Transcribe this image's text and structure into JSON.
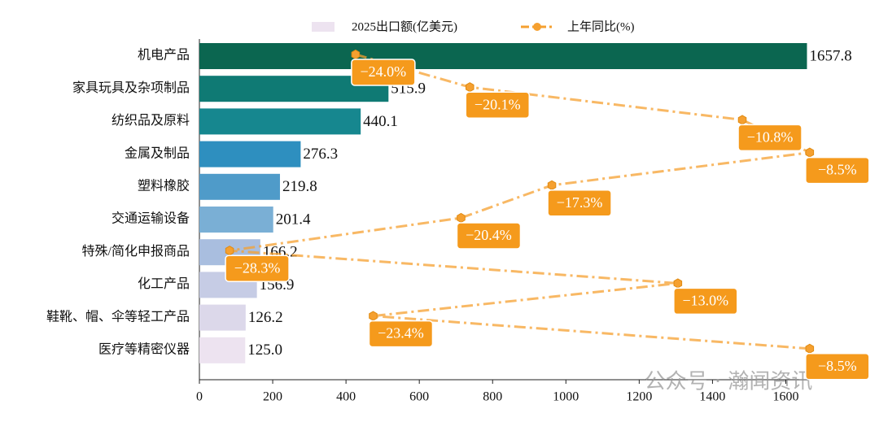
{
  "chart_data": {
    "type": "bar_line",
    "categories": [
      "机电产品",
      "家具玩具及杂项制品",
      "纺织品及原料",
      "金属及制品",
      "塑料橡胶",
      "交通运输设备",
      "特殊/简化申报商品",
      "化工产品",
      "鞋靴、帽、伞等轻工产品",
      "医疗等精密仪器"
    ],
    "series": [
      {
        "name": "2025出口额(亿美元)",
        "type": "bar",
        "values": [
          1657.8,
          515.9,
          440.1,
          276.3,
          219.8,
          201.4,
          166.2,
          156.9,
          126.2,
          125.0
        ],
        "value_labels": [
          "1657.8",
          "515.9",
          "440.1",
          "276.3",
          "219.8",
          "201.4",
          "166.2",
          "156.9",
          "126.2",
          "125.0"
        ],
        "colors": [
          "#0b6650",
          "#0f7a74",
          "#16878f",
          "#2e8fbf",
          "#4f9bc9",
          "#7aafd5",
          "#a9bedf",
          "#c6cce5",
          "#dcd8ea",
          "#ede3f0"
        ]
      },
      {
        "name": "上年同比(%)",
        "type": "line",
        "axis": "x2",
        "color": "#f5a030",
        "values": [
          -24.0,
          -20.1,
          -10.8,
          -8.5,
          -17.3,
          -20.4,
          -28.3,
          -13.0,
          -23.4,
          -8.5
        ],
        "value_labels": [
          "−24.0%",
          "−20.1%",
          "−10.8%",
          "−8.5%",
          "−17.3%",
          "−20.4%",
          "−28.3%",
          "−13.0%",
          "−23.4%",
          "−8.5%"
        ]
      }
    ],
    "xlim": [
      0,
      1670
    ],
    "xticks": [
      0,
      200,
      400,
      600,
      800,
      1000,
      1200,
      1400,
      1600
    ],
    "x2lim": [
      -29.33,
      -8.44
    ],
    "watermark": "公众号 · 瀚闻资讯"
  }
}
